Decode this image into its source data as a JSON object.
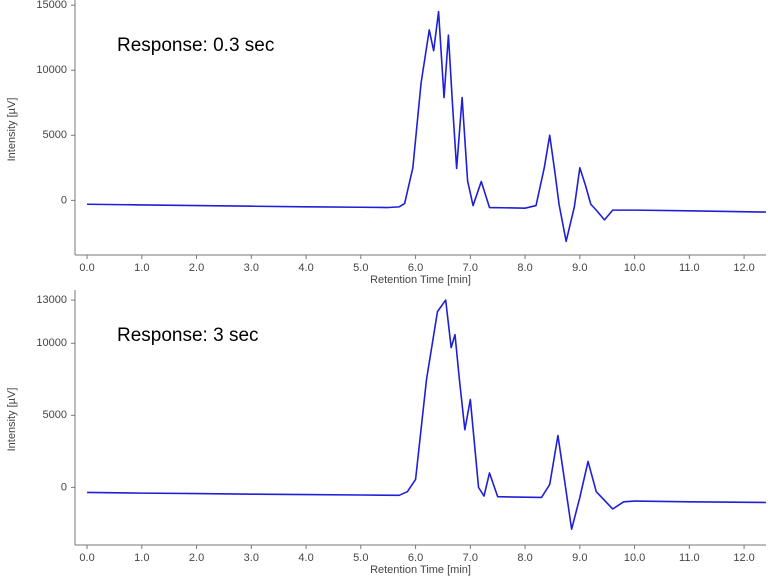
{
  "chart_data": [
    {
      "type": "line",
      "annotation": "Response: 0.3 sec",
      "xlabel": "Retention Time [min]",
      "ylabel": "Intensity [µV]",
      "color": "#1f1fd6",
      "x": [
        0,
        1,
        2,
        3,
        4,
        5,
        5.5,
        5.7,
        5.8,
        5.95,
        6.1,
        6.25,
        6.33,
        6.42,
        6.52,
        6.6,
        6.68,
        6.75,
        6.85,
        6.95,
        7.05,
        7.2,
        7.35,
        8.0,
        8.2,
        8.35,
        8.45,
        8.55,
        8.62,
        8.75,
        8.9,
        9.0,
        9.1,
        9.2,
        9.3,
        9.45,
        9.6,
        10.0,
        11.0,
        12.4
      ],
      "values": [
        -300,
        -350,
        -400,
        -450,
        -500,
        -530,
        -550,
        -500,
        -250,
        2500,
        9000,
        13100,
        11500,
        14500,
        7900,
        12700,
        7000,
        2450,
        7900,
        1500,
        -400,
        1450,
        -550,
        -600,
        -400,
        2500,
        5000,
        2000,
        -300,
        -3150,
        -500,
        2500,
        1200,
        -300,
        -750,
        -1500,
        -750,
        -750,
        -800,
        -900
      ],
      "xlim": [
        -0.22,
        12.4
      ],
      "ylim": [
        -4200,
        15400
      ],
      "xticks": [
        {
          "value": 0,
          "label": "0.0"
        },
        {
          "value": 1,
          "label": "1.0"
        },
        {
          "value": 2,
          "label": "2.0"
        },
        {
          "value": 3,
          "label": "3.0"
        },
        {
          "value": 4,
          "label": "4.0"
        },
        {
          "value": 5,
          "label": "5.0"
        },
        {
          "value": 6,
          "label": "6.0"
        },
        {
          "value": 7,
          "label": "7.0"
        },
        {
          "value": 8,
          "label": "8.0"
        },
        {
          "value": 9,
          "label": "9.0"
        },
        {
          "value": 10,
          "label": "10.0"
        },
        {
          "value": 11,
          "label": "11.0"
        },
        {
          "value": 12,
          "label": "12.0"
        }
      ],
      "yticks": [
        0,
        5000,
        10000,
        15000
      ]
    },
    {
      "type": "line",
      "annotation": "Response: 3 sec",
      "xlabel": "Retention Time [min]",
      "ylabel": "Intensity [µV]",
      "color": "#1f1fd6",
      "x": [
        0,
        1,
        2,
        3,
        4,
        5,
        5.7,
        5.85,
        6.0,
        6.2,
        6.4,
        6.55,
        6.65,
        6.72,
        6.8,
        6.9,
        7.0,
        7.15,
        7.25,
        7.35,
        7.5,
        8.3,
        8.45,
        8.6,
        8.72,
        8.85,
        9.0,
        9.15,
        9.3,
        9.45,
        9.6,
        9.8,
        10.0,
        11.0,
        12.4
      ],
      "values": [
        -350,
        -400,
        -430,
        -470,
        -500,
        -530,
        -550,
        -300,
        550,
        7500,
        12200,
        13000,
        9700,
        10600,
        7500,
        4000,
        6100,
        0,
        -600,
        1000,
        -650,
        -700,
        200,
        3600,
        500,
        -2900,
        -700,
        1800,
        -300,
        -900,
        -1500,
        -1000,
        -950,
        -1000,
        -1050
      ],
      "xlim": [
        -0.22,
        12.4
      ],
      "ylim": [
        -4000,
        13700
      ],
      "xticks": [
        {
          "value": 0,
          "label": "0.0"
        },
        {
          "value": 1,
          "label": "1.0"
        },
        {
          "value": 2,
          "label": "2.0"
        },
        {
          "value": 3,
          "label": "3.0"
        },
        {
          "value": 4,
          "label": "4.0"
        },
        {
          "value": 5,
          "label": "5.0"
        },
        {
          "value": 6,
          "label": "6.0"
        },
        {
          "value": 7,
          "label": "7.0"
        },
        {
          "value": 8,
          "label": "8.0"
        },
        {
          "value": 9,
          "label": "9.0"
        },
        {
          "value": 10,
          "label": "10.0"
        },
        {
          "value": 11,
          "label": "11.0"
        },
        {
          "value": 12,
          "label": "12.0"
        }
      ],
      "yticks": [
        0,
        5000,
        10000,
        13000
      ]
    }
  ]
}
